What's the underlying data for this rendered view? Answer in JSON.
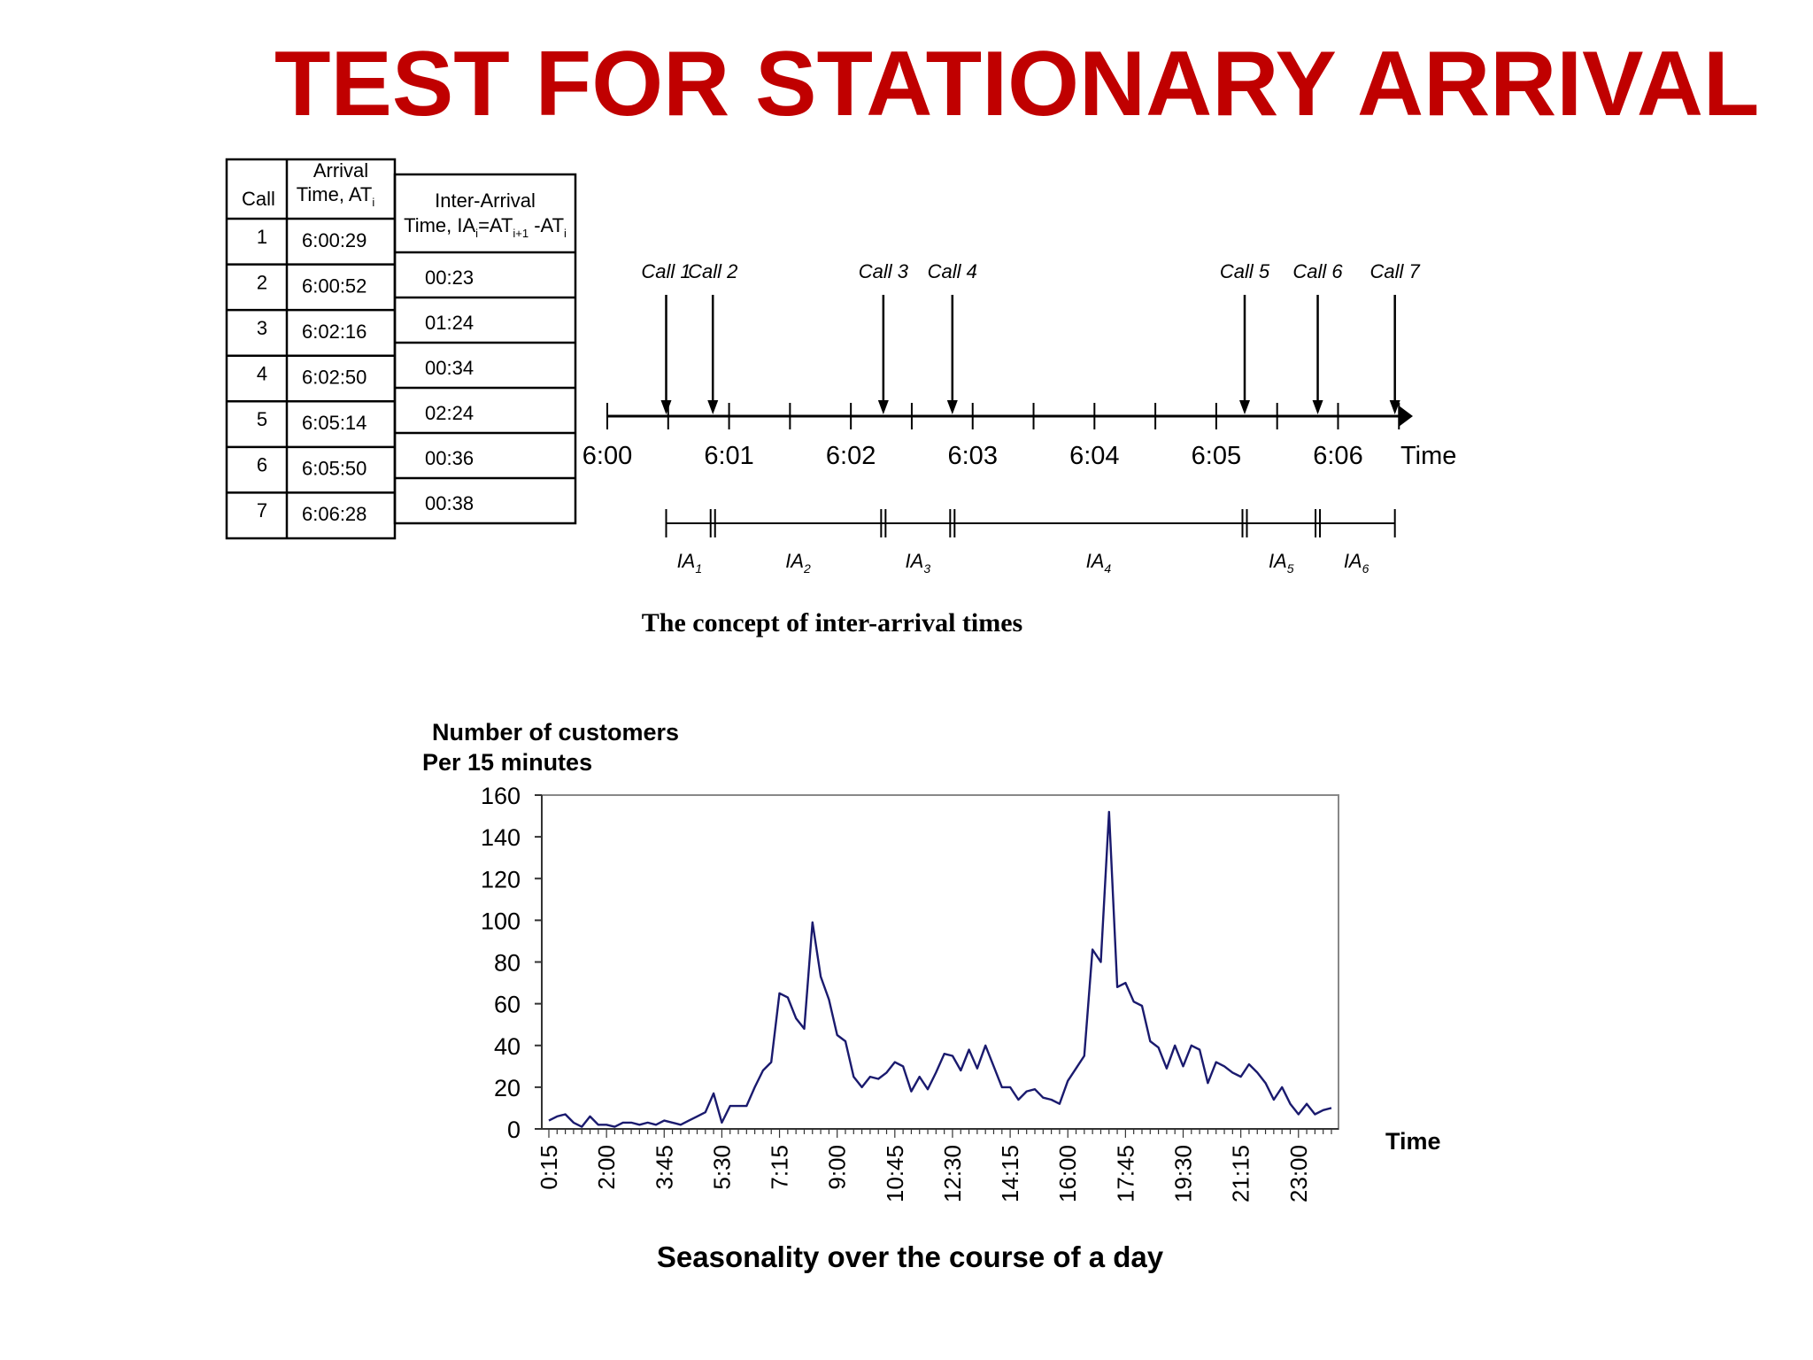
{
  "title": "TEST FOR STATIONARY ARRIVAL",
  "colors": {
    "title": "#c00000",
    "text": "#000000",
    "series": "#1a1a6e",
    "frame": "#888888"
  },
  "table": {
    "headers": {
      "call": "Call",
      "arrival": [
        "Arrival",
        "Time, AT",
        "i"
      ],
      "inter": [
        "Inter-Arrival",
        "Time, IA",
        "i",
        "=AT",
        "i+1",
        " -AT",
        "i"
      ]
    },
    "rows": [
      {
        "call": "1",
        "time": "6:00:29"
      },
      {
        "call": "2",
        "time": "6:00:52"
      },
      {
        "call": "3",
        "time": "6:02:16"
      },
      {
        "call": "4",
        "time": "6:02:50"
      },
      {
        "call": "5",
        "time": "6:05:14"
      },
      {
        "call": "6",
        "time": "6:05:50"
      },
      {
        "call": "7",
        "time": "6:06:28"
      }
    ],
    "inter_values": [
      "00:23",
      "01:24",
      "00:34",
      "02:24",
      "00:36",
      "00:38"
    ]
  },
  "timeline": {
    "axis_label": "Time",
    "tick_labels": [
      "6:00",
      "6:01",
      "6:02",
      "6:03",
      "6:04",
      "6:05",
      "6:06"
    ],
    "calls": [
      {
        "label": "Call 1",
        "seconds": 29
      },
      {
        "label": "Call 2",
        "seconds": 52
      },
      {
        "label": "Call 3",
        "seconds": 136
      },
      {
        "label": "Call 4",
        "seconds": 170
      },
      {
        "label": "Call 5",
        "seconds": 314
      },
      {
        "label": "Call 6",
        "seconds": 350
      },
      {
        "label": "Call 7",
        "seconds": 388
      }
    ],
    "intervals": [
      {
        "base": "IA",
        "sub": "1"
      },
      {
        "base": "IA",
        "sub": "2"
      },
      {
        "base": "IA",
        "sub": "3"
      },
      {
        "base": "IA",
        "sub": "4"
      },
      {
        "base": "IA",
        "sub": "5"
      },
      {
        "base": "IA",
        "sub": "6"
      }
    ],
    "caption": "The concept of inter-arrival times"
  },
  "chart_data": {
    "type": "line",
    "ylabel": [
      "Number of customers",
      "Per 15 minutes"
    ],
    "xlabel": "Time",
    "ylim": [
      0,
      160
    ],
    "yticks": [
      0,
      20,
      40,
      60,
      80,
      100,
      120,
      140,
      160
    ],
    "x_tick_labels": [
      "0:15",
      "2:00",
      "3:45",
      "5:30",
      "7:15",
      "9:00",
      "10:45",
      "12:30",
      "14:15",
      "16:00",
      "17:45",
      "19:30",
      "21:15",
      "23:00"
    ],
    "grid": false,
    "series": [
      {
        "values": [
          4,
          6,
          7,
          3,
          1,
          6,
          2,
          2,
          1,
          3,
          3,
          2,
          3,
          2,
          4,
          3,
          2,
          4,
          6,
          8,
          17,
          3,
          11,
          11,
          11,
          20,
          28,
          32,
          65,
          63,
          53,
          48,
          99,
          73,
          62,
          45,
          42,
          25,
          20,
          25,
          24,
          27,
          32,
          30,
          18,
          25,
          19,
          27,
          36,
          35,
          28,
          38,
          29,
          40,
          30,
          20,
          20,
          14,
          18,
          19,
          15,
          14,
          12,
          23,
          29,
          35,
          86,
          80,
          152,
          68,
          70,
          61,
          59,
          42,
          39,
          29,
          40,
          30,
          40,
          38,
          22,
          32,
          30,
          27,
          25,
          31,
          27,
          22,
          14,
          20,
          12,
          7,
          12,
          7,
          9,
          10
        ]
      }
    ]
  },
  "chart_caption": "Seasonality over the course of a day"
}
